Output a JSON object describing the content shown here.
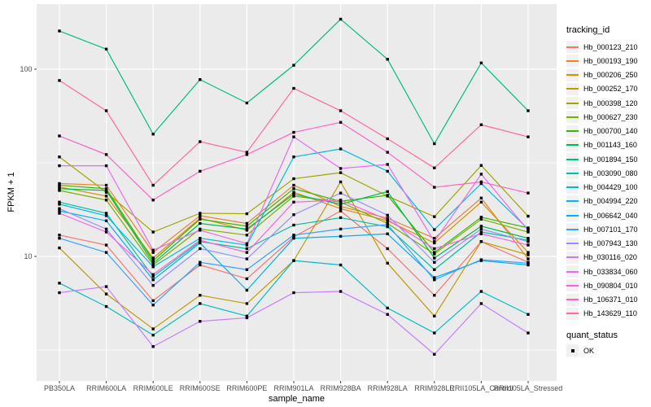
{
  "chart_data": {
    "type": "line",
    "xlabel": "sample_name",
    "ylabel": "FPKM + 1",
    "y_scale": "log10",
    "ylim": [
      2.16,
      223
    ],
    "grid": true,
    "legend_position": "right",
    "panel_bg": "#EBEBEB",
    "grid_color": "#FFFFFF",
    "axis_text_color": "#4D4D4D",
    "tick_color": "#333333",
    "y_ticks": [
      {
        "label": "100",
        "value": 100
      },
      {
        "label": "10",
        "value": 10
      }
    ],
    "y_minor_breaks": [
      31.623,
      3.1623
    ],
    "categories": [
      "PB350LA",
      "RRIM600LA",
      "RRIM600LE",
      "RRIM600SE",
      "RRIM600PE",
      "RRIM901LA",
      "RRIM928BA",
      "RRIM928LA",
      "RRIM928LE",
      "RRII105LA_Control",
      "RRII105LA_Stressed"
    ],
    "marker": {
      "shape": "square",
      "color": "#000000",
      "size": 3.4,
      "meaning": "quant_status OK"
    },
    "series": [
      {
        "name": "Hb_000123_210",
        "color": "#F8766D",
        "values": [
          13.0,
          11.5,
          5.8,
          9.0,
          7.6,
          12.7,
          17.5,
          11.0,
          6.2,
          12.0,
          9.3
        ]
      },
      {
        "name": "Hb_000193_190",
        "color": "#EA8331",
        "values": [
          24.5,
          24.0,
          10.5,
          16.5,
          15.0,
          24.0,
          18.5,
          16.0,
          12.5,
          20.5,
          9.7
        ]
      },
      {
        "name": "Hb_000206_250",
        "color": "#D89000",
        "values": [
          23.5,
          21.0,
          9.8,
          16.0,
          13.8,
          22.0,
          18.0,
          15.5,
          11.8,
          19.5,
          10.5
        ]
      },
      {
        "name": "Hb_000252_170",
        "color": "#C09B00",
        "values": [
          11.1,
          6.3,
          4.1,
          6.2,
          5.6,
          9.5,
          25.0,
          9.2,
          4.8,
          12.0,
          10.2
        ]
      },
      {
        "name": "Hb_000398_120",
        "color": "#A3A500",
        "values": [
          34.0,
          22.0,
          13.5,
          17.0,
          16.9,
          26.0,
          28.0,
          21.0,
          16.3,
          30.6,
          16.4
        ]
      },
      {
        "name": "Hb_000627_230",
        "color": "#7CAE00",
        "values": [
          22.5,
          20.0,
          9.0,
          14.0,
          13.0,
          21.0,
          19.5,
          15.0,
          10.3,
          15.8,
          13.5
        ]
      },
      {
        "name": "Hb_000700_140",
        "color": "#39B600",
        "values": [
          24.0,
          23.0,
          9.5,
          15.8,
          14.5,
          23.0,
          19.7,
          21.2,
          10.5,
          16.2,
          14.2
        ]
      },
      {
        "name": "Hb_001143_160",
        "color": "#00BB4E",
        "values": [
          23.0,
          22.5,
          9.2,
          15.0,
          14.0,
          21.5,
          19.0,
          22.2,
          9.8,
          14.5,
          12.5
        ]
      },
      {
        "name": "Hb_001894_150",
        "color": "#00BF7D",
        "values": [
          160,
          128,
          45,
          88,
          66,
          105,
          185,
          113,
          40,
          108,
          60
        ]
      },
      {
        "name": "Hb_003090_080",
        "color": "#00C1A3",
        "values": [
          19.5,
          17.0,
          7.8,
          12.0,
          11.0,
          14.7,
          16.1,
          14.4,
          8.5,
          13.5,
          12.2
        ]
      },
      {
        "name": "Hb_004429_100",
        "color": "#00BFC4",
        "values": [
          7.2,
          5.4,
          3.8,
          5.6,
          4.8,
          9.5,
          9.0,
          5.3,
          3.9,
          6.5,
          4.9
        ]
      },
      {
        "name": "Hb_004994_220",
        "color": "#00BAE0",
        "values": [
          19.0,
          16.5,
          8.8,
          12.5,
          11.5,
          34.0,
          37.5,
          28.5,
          13.9,
          24.5,
          14.0
        ]
      },
      {
        "name": "Hb_006642_040",
        "color": "#00B0F6",
        "values": [
          17.5,
          15.5,
          7.5,
          11.8,
          6.6,
          12.5,
          12.8,
          13.2,
          7.7,
          9.5,
          9.0
        ]
      },
      {
        "name": "Hb_007101_170",
        "color": "#35A2FF",
        "values": [
          12.5,
          10.5,
          5.5,
          9.3,
          8.5,
          13.0,
          14.0,
          14.8,
          7.5,
          9.6,
          9.2
        ]
      },
      {
        "name": "Hb_007943_130",
        "color": "#9590FF",
        "values": [
          18.0,
          14.0,
          7.0,
          11.0,
          9.7,
          16.7,
          21.8,
          16.6,
          9.3,
          14.0,
          12.0
        ]
      },
      {
        "name": "Hb_030116_020",
        "color": "#C77CFF",
        "values": [
          6.4,
          6.9,
          3.3,
          4.5,
          4.7,
          6.4,
          6.5,
          4.9,
          3.0,
          5.6,
          3.9
        ]
      },
      {
        "name": "Hb_033834_060",
        "color": "#E76BF3",
        "values": [
          30.5,
          30.5,
          10.8,
          13.8,
          11.7,
          43.5,
          29.5,
          31.0,
          12.0,
          27.5,
          13.8
        ]
      },
      {
        "name": "Hb_090804_010",
        "color": "#FA62DB",
        "values": [
          17.0,
          13.5,
          8.0,
          12.2,
          10.5,
          19.5,
          20.0,
          15.7,
          11.0,
          13.2,
          11.5
        ]
      },
      {
        "name": "Hb_106371_010",
        "color": "#FF61C9",
        "values": [
          44,
          35,
          20,
          28.5,
          35,
          46,
          52,
          36,
          23.4,
          25,
          21.8
        ]
      },
      {
        "name": "Hb_143629_110",
        "color": "#FF67A4",
        "values": [
          87,
          60,
          24,
          41,
          36,
          79,
          60,
          42.5,
          29.7,
          50.5,
          43.5
        ]
      }
    ]
  },
  "legend": {
    "title": "tracking_id"
  },
  "legend2": {
    "title": "quant_status",
    "items": [
      {
        "label": "OK",
        "marker": "black-square"
      }
    ]
  }
}
